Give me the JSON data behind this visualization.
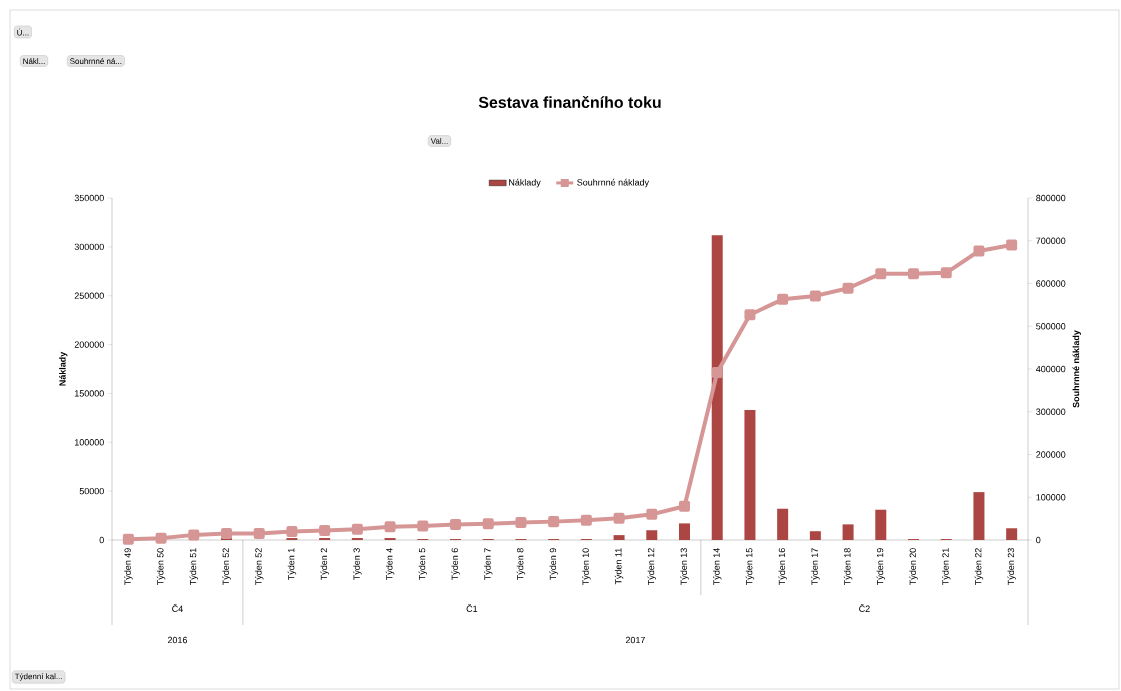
{
  "chart_data": {
    "type": "bar",
    "title": "Sestava finančního toku",
    "categories": [
      "Týden 49",
      "Týden 50",
      "Týden 51",
      "Týden 52",
      "Týden 52",
      "Týden 1",
      "Týden 2",
      "Týden 3",
      "Týden 4",
      "Týden 5",
      "Týden 6",
      "Týden 7",
      "Týden 8",
      "Týden 9",
      "Týden 10",
      "Týden 11",
      "Týden 12",
      "Týden 13",
      "Týden 14",
      "Týden 15",
      "Týden 16",
      "Týden 17",
      "Týden 18",
      "Týden 19",
      "Týden 20",
      "Týden 21",
      "Týden 22",
      "Týden 23"
    ],
    "series": [
      {
        "name": "Náklady",
        "color": "#ab4642",
        "values": [
          null,
          null,
          null,
          2000,
          0,
          2000,
          2000,
          2000,
          2000,
          1000,
          1000,
          1000,
          1000,
          1000,
          1000,
          5000,
          10000,
          17000,
          312000,
          133000,
          32000,
          9000,
          16000,
          31000,
          1000,
          1000,
          49000,
          12000
        ]
      },
      {
        "name": "Souhrnné náklady",
        "type": "line",
        "axis": "y2",
        "color": "#d69695",
        "values": [
          2000,
          4000,
          12000,
          15000,
          15000,
          20000,
          22000,
          25000,
          31000,
          33000,
          36000,
          38000,
          41000,
          43000,
          46000,
          51000,
          60000,
          79000,
          392000,
          527000,
          563000,
          571000,
          589000,
          623000,
          623000,
          625000,
          676000,
          690000
        ]
      }
    ],
    "ylabel": "Náklady",
    "y2label": "Souhrnné náklady",
    "ylim": [
      0,
      350000
    ],
    "yticks": [
      0,
      50000,
      100000,
      150000,
      200000,
      250000,
      300000,
      350000
    ],
    "y2lim": [
      0,
      800000
    ],
    "y2ticks": [
      0,
      100000,
      200000,
      300000,
      400000,
      500000,
      600000,
      700000,
      800000
    ],
    "marker": "square",
    "legend": "top",
    "grid": false,
    "annotations": [
      "Č4",
      "Č1",
      "Č2",
      "2016",
      "2017",
      "Ú...",
      "Nákl...",
      "Souhrnné ná...",
      "Val...",
      "Týdenní kal..."
    ]
  }
}
